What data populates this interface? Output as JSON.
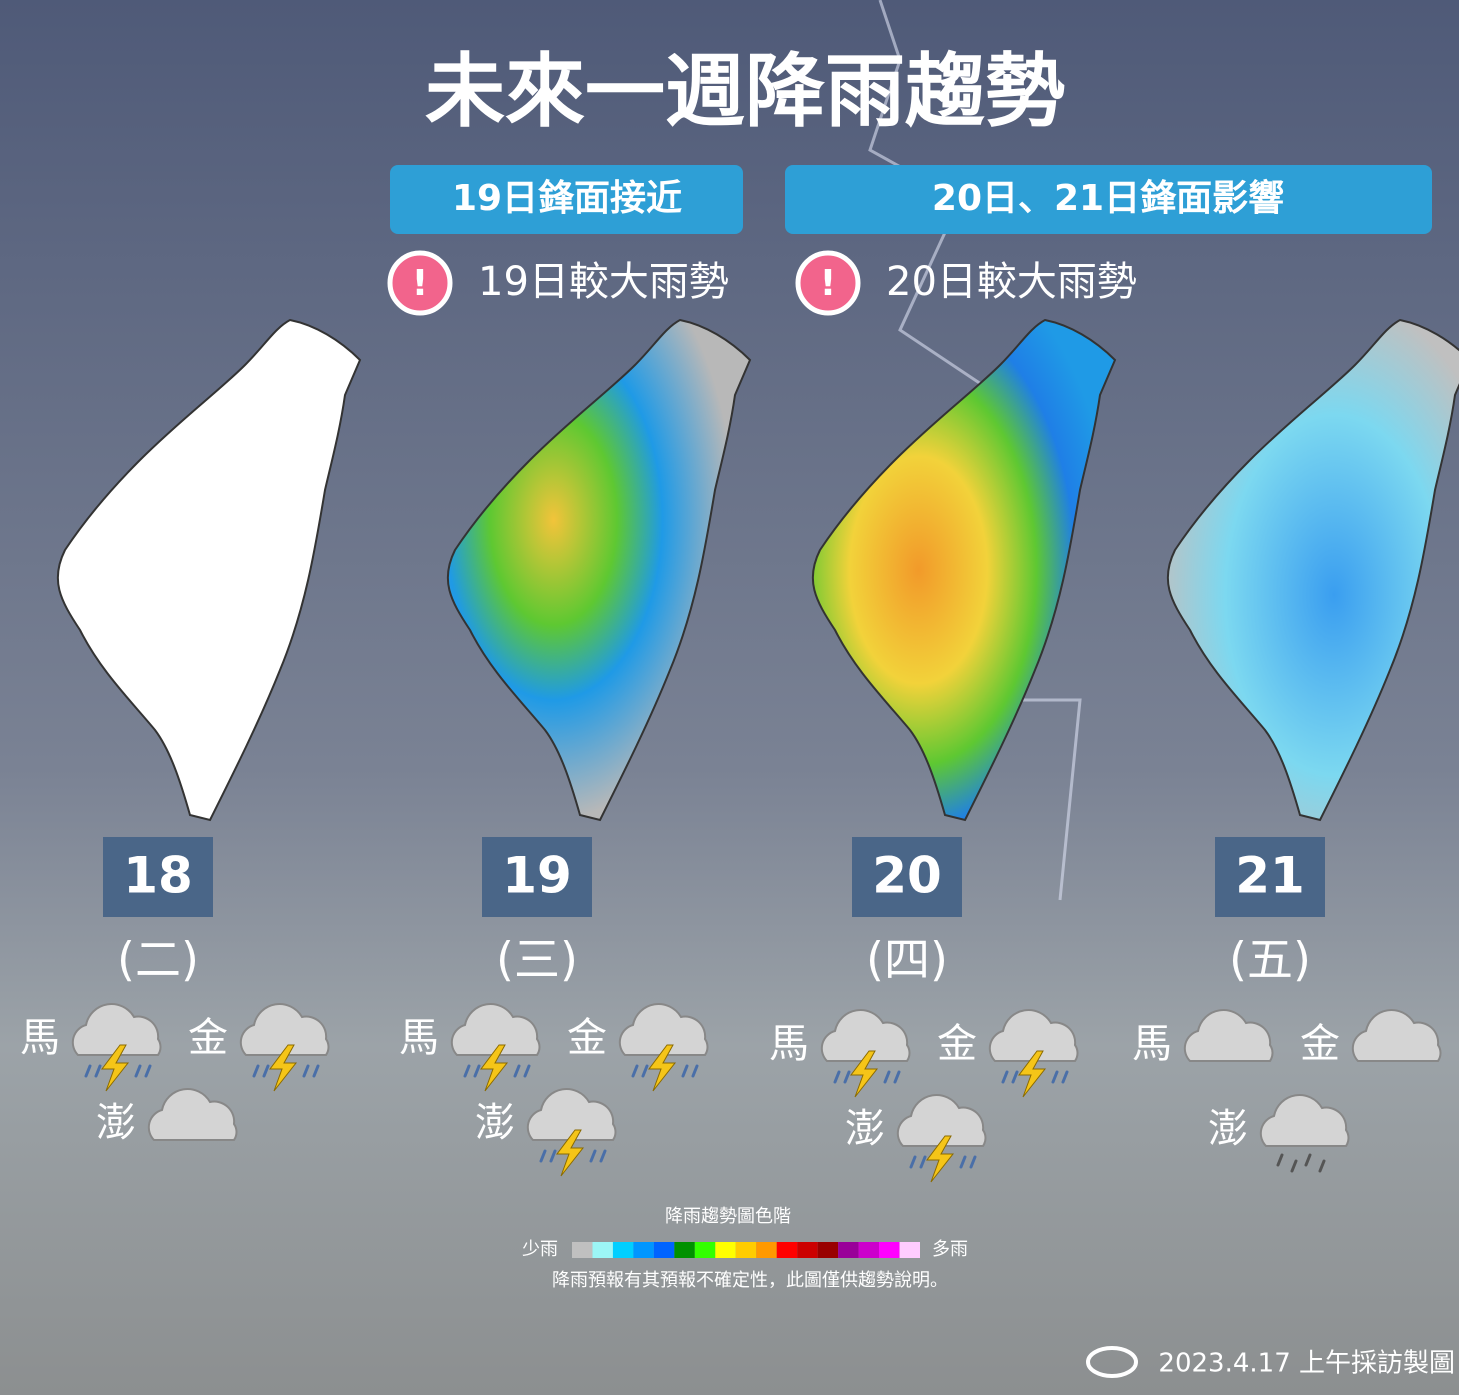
{
  "title": "未來一週降雨趨勢",
  "periods": [
    {
      "label": "19日鋒面接近",
      "alert": "19日較大雨勢"
    },
    {
      "label": "20日、21日鋒面影響",
      "alert": "20日較大雨勢"
    }
  ],
  "alert_icon": "!",
  "days": [
    {
      "date": "18",
      "weekday": "(二)",
      "islands": [
        {
          "name": "馬",
          "weather": "thunder"
        },
        {
          "name": "金",
          "weather": "thunder"
        },
        {
          "name": "澎",
          "weather": "cloudy"
        }
      ]
    },
    {
      "date": "19",
      "weekday": "(三)",
      "islands": [
        {
          "name": "馬",
          "weather": "thunder"
        },
        {
          "name": "金",
          "weather": "thunder"
        },
        {
          "name": "澎",
          "weather": "thunder"
        }
      ]
    },
    {
      "date": "20",
      "weekday": "(四)",
      "islands": [
        {
          "name": "馬",
          "weather": "thunder"
        },
        {
          "name": "金",
          "weather": "thunder"
        },
        {
          "name": "澎",
          "weather": "thunder"
        }
      ]
    },
    {
      "date": "21",
      "weekday": "(五)",
      "islands": [
        {
          "name": "馬",
          "weather": "cloudy"
        },
        {
          "name": "金",
          "weather": "cloudy"
        },
        {
          "name": "澎",
          "weather": "rain"
        }
      ]
    }
  ],
  "legend": {
    "title": "降雨趨勢圖色階",
    "low": "少雨",
    "high": "多雨",
    "colors": [
      "#c0c0c0",
      "#9cf6f6",
      "#00cfff",
      "#0096ff",
      "#0064ff",
      "#009100",
      "#33ff00",
      "#ffff00",
      "#ffcc00",
      "#ff9900",
      "#ff0000",
      "#cc0000",
      "#990000",
      "#990099",
      "#cc00cc",
      "#ff00ff",
      "#ffccff"
    ],
    "note": "降雨預報有其預報不確定性，此圖僅供趨勢說明。"
  },
  "credit": "2023.4.17 上午採訪製圖"
}
